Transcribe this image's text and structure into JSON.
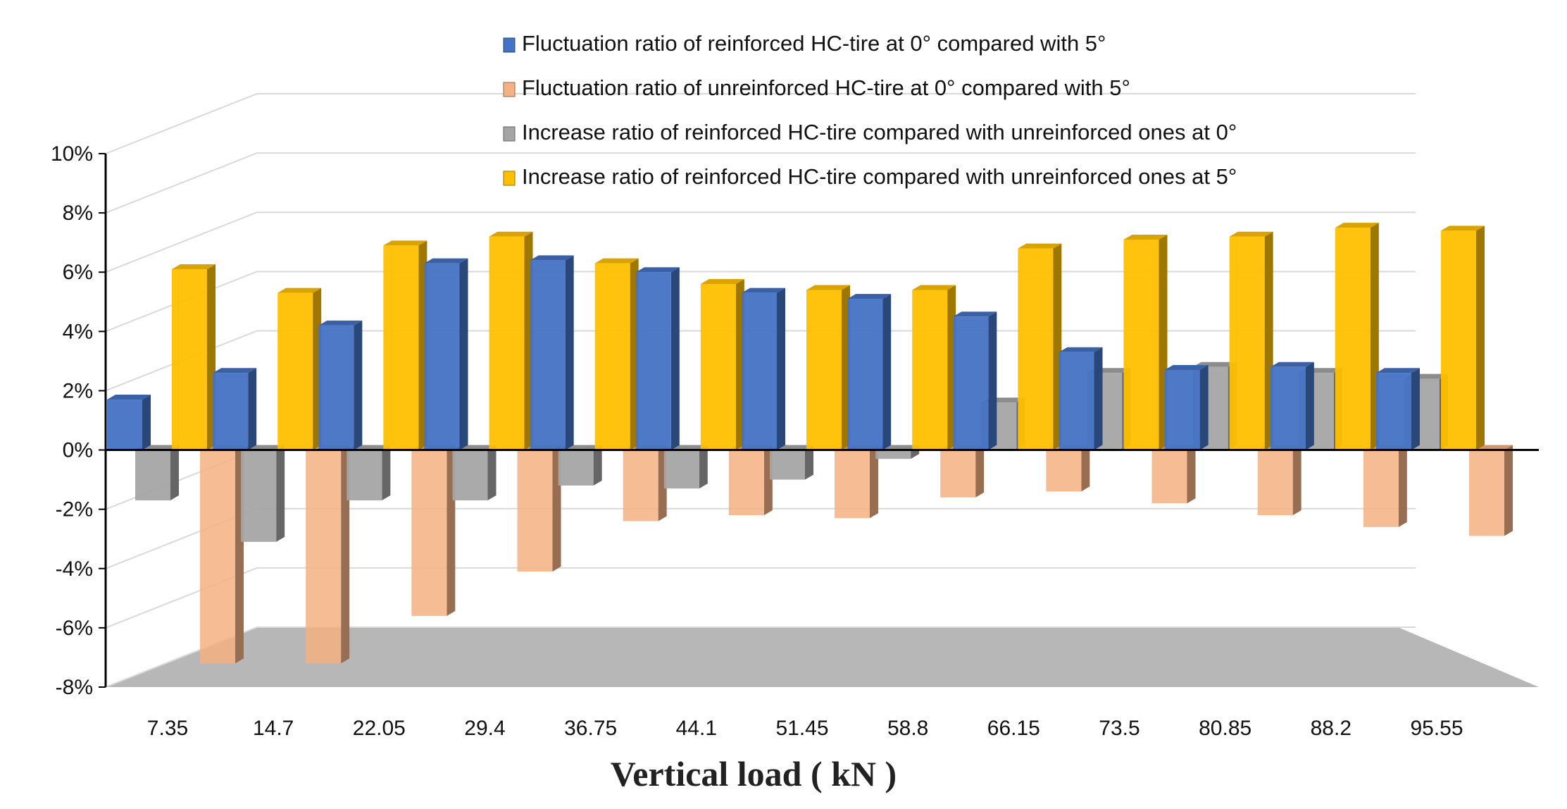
{
  "chart_data": {
    "type": "bar",
    "title": "",
    "xlabel": "Vertical load ( kN )",
    "ylabel": "",
    "ylim": [
      -8,
      10
    ],
    "y_ticks": [
      "10%",
      "8%",
      "6%",
      "4%",
      "2%",
      "0%",
      "-2%",
      "-4%",
      "-6%",
      "-8%"
    ],
    "categories": [
      "7.35",
      "14.7",
      "22.05",
      "29.4",
      "36.75",
      "44.1",
      "51.45",
      "58.8",
      "66.15",
      "73.5",
      "80.85",
      "88.2",
      "95.55"
    ],
    "legend_position": "top-right",
    "series": [
      {
        "name": "Fluctuation ratio of reinforced HC-tire at 0° compared with 5°",
        "color": "#4472C4",
        "values": [
          1.7,
          2.6,
          4.2,
          6.3,
          6.4,
          6.0,
          5.3,
          5.1,
          4.5,
          3.3,
          2.7,
          2.8,
          2.6
        ]
      },
      {
        "name": "Fluctuation ratio of unreinforced HC-tire at 0° compared with 5°",
        "color": "#F4B183",
        "values": [
          -7.2,
          -7.2,
          -5.6,
          -4.1,
          -2.4,
          -2.2,
          -2.3,
          -1.6,
          -1.4,
          -1.8,
          -2.2,
          -2.6,
          -2.9
        ]
      },
      {
        "name": "Increase ratio of reinforced HC-tire compared with unreinforced ones at 0°",
        "color": "#A5A5A5",
        "values": [
          -1.7,
          -3.1,
          -1.7,
          -1.7,
          -1.2,
          -1.3,
          -1.0,
          -0.3,
          1.6,
          2.6,
          2.8,
          2.6,
          2.4
        ]
      },
      {
        "name": "Increase ratio of reinforced HC-tire compared with unreinforced ones at 5°",
        "color": "#FFC000",
        "values": [
          6.1,
          5.3,
          6.9,
          7.2,
          6.3,
          5.6,
          5.4,
          5.4,
          6.8,
          7.1,
          7.2,
          7.5,
          7.4
        ]
      }
    ]
  }
}
